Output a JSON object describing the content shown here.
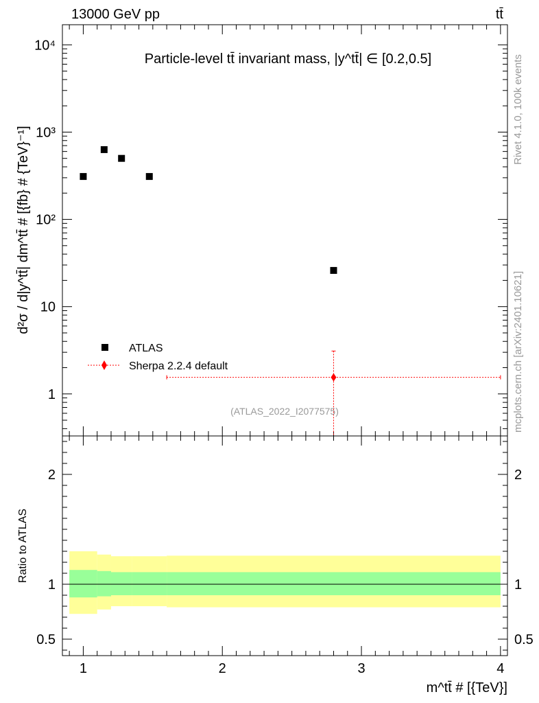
{
  "header": {
    "left": "13000 GeV pp",
    "right": "tt̄"
  },
  "side_labels": {
    "rivet": "Rivet 4.1.0,  100k events",
    "mcplots": "mcplots.cern.ch [arXiv:2401.10621]"
  },
  "colors": {
    "mc": "#ff0000",
    "band_inner": "#99ff99",
    "band_outer": "#ffff99",
    "data": "#000000",
    "watermark": "#999999"
  },
  "chart_data": [
    {
      "type": "scatter",
      "title": "Particle-level tt̄ invariant mass, |y^tt̄| ∈ [0.2,0.5]",
      "ylabel": "d²σ / d|y^tt̄| dm^tt̄ # [{fb} # {TeV}⁻¹]",
      "xlabel": "m^tt̄ # [{TeV}]",
      "yscale": "log",
      "xlim": [
        0.85,
        4.05
      ],
      "ylim": [
        0.33,
        17000
      ],
      "y_ticks": [
        1,
        10,
        100,
        1000,
        10000
      ],
      "y_tick_labels": [
        "1",
        "10",
        "10²",
        "10³",
        "10⁴"
      ],
      "watermark": "(ATLAS_2022_I2077575)",
      "legend": [
        {
          "label": "ATLAS",
          "marker": "square"
        },
        {
          "label": "Sherpa 2.2.4 default",
          "marker": "diamond"
        }
      ],
      "series": [
        {
          "name": "ATLAS",
          "x": [
            1.0,
            1.15,
            1.275,
            1.475,
            2.8
          ],
          "y": [
            310,
            630,
            500,
            310,
            26
          ]
        },
        {
          "name": "Sherpa 2.2.4 default",
          "x": [
            2.8
          ],
          "y": [
            1.55
          ],
          "x_low": [
            1.6
          ],
          "x_high": [
            4.0
          ],
          "y_low": [
            0.33
          ],
          "y_high": [
            3.1
          ]
        }
      ]
    },
    {
      "type": "area",
      "ylabel": "Ratio to ATLAS",
      "xlabel": "m^tt̄ # [{TeV}]",
      "xlim": [
        0.85,
        4.05
      ],
      "ylim": [
        0.35,
        2.35
      ],
      "x_ticks": [
        1,
        2,
        3,
        4
      ],
      "x_tick_labels": [
        "1",
        "2",
        "3",
        "4"
      ],
      "y_ticks": [
        0.5,
        1,
        2
      ],
      "y_tick_labels": [
        "0.5",
        "1",
        "2"
      ],
      "reference_line": 1,
      "bins": [
        {
          "x_low": 0.9,
          "x_high": 1.1,
          "inner_low": 0.88,
          "inner_high": 1.13,
          "outer_low": 0.73,
          "outer_high": 1.3
        },
        {
          "x_low": 1.1,
          "x_high": 1.2,
          "inner_low": 0.89,
          "inner_high": 1.12,
          "outer_low": 0.77,
          "outer_high": 1.27
        },
        {
          "x_low": 1.2,
          "x_high": 1.35,
          "inner_low": 0.9,
          "inner_high": 1.11,
          "outer_low": 0.8,
          "outer_high": 1.255
        },
        {
          "x_low": 1.35,
          "x_high": 1.6,
          "inner_low": 0.9,
          "inner_high": 1.11,
          "outer_low": 0.8,
          "outer_high": 1.255
        },
        {
          "x_low": 1.6,
          "x_high": 4.0,
          "inner_low": 0.9,
          "inner_high": 1.11,
          "outer_low": 0.79,
          "outer_high": 1.26
        }
      ]
    }
  ]
}
